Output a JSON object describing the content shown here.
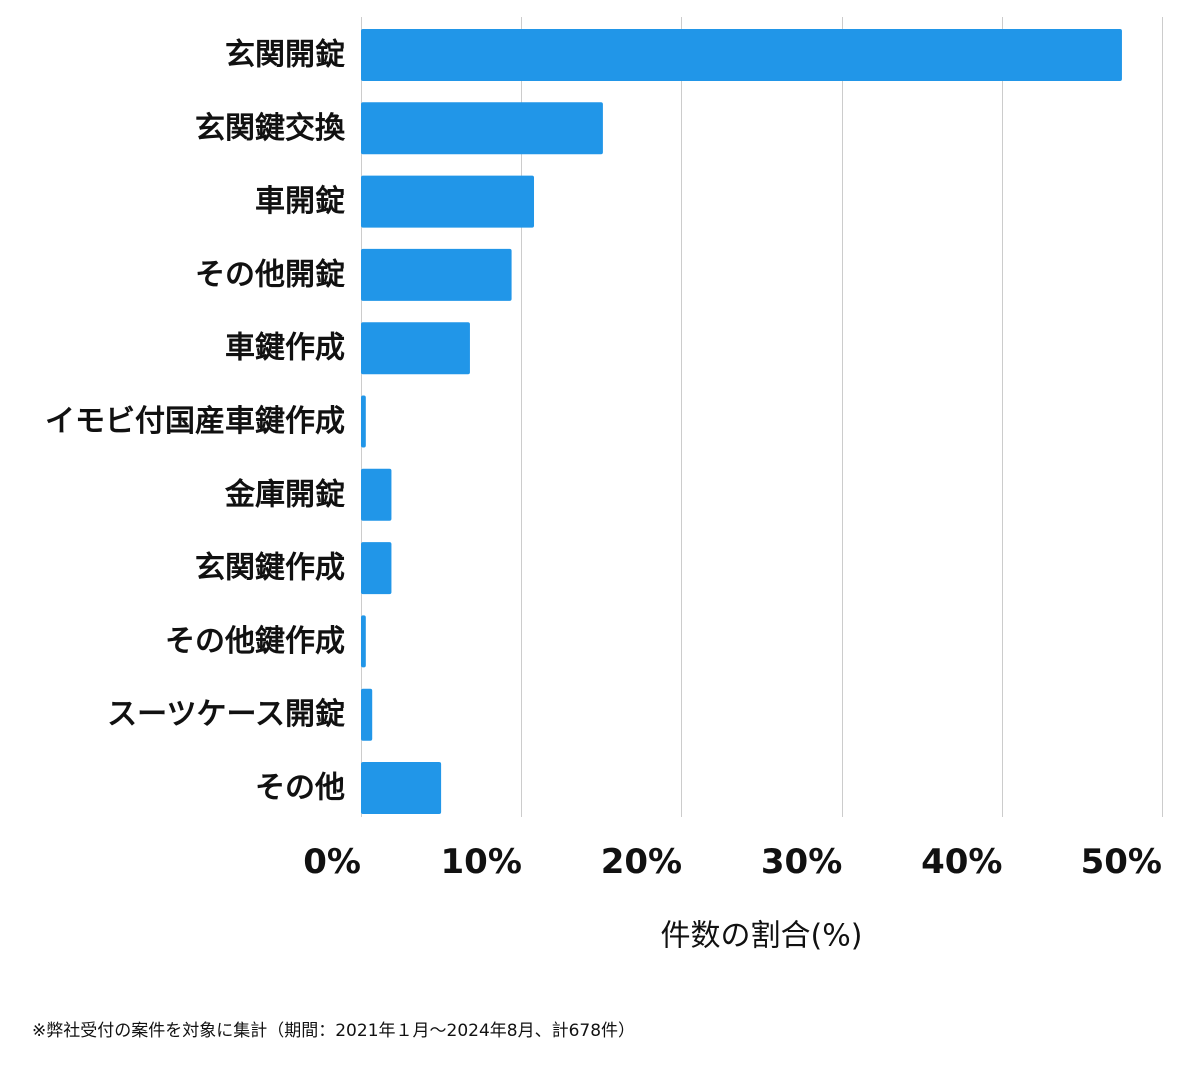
{
  "chart_data": {
    "type": "bar",
    "orientation": "horizontal",
    "categories": [
      "玄関開錠",
      "玄関鍵交換",
      "車開錠",
      "その他開錠",
      "車鍵作成",
      "イモビ付国産車鍵作成",
      "金庫開錠",
      "玄関鍵作成",
      "その他鍵作成",
      "スーツケース開錠",
      "その他"
    ],
    "values": [
      47.5,
      15.1,
      10.8,
      9.4,
      6.8,
      0.3,
      1.9,
      1.9,
      0.3,
      0.7,
      5.0
    ],
    "unit": "%",
    "xlabel": "件数の割合(%)",
    "xlim": [
      0,
      50
    ],
    "xticks": [
      0,
      10,
      20,
      30,
      40,
      50
    ],
    "xtick_labels": [
      "0%",
      "10%",
      "20%",
      "30%",
      "40%",
      "50%"
    ],
    "grid": "vertical",
    "legend": "none"
  },
  "colors": {
    "bar": "#2196e8",
    "grid": "#cccccc",
    "text": "#111111"
  },
  "footnote": "※弊社受付の案件を対象に集計（期間：2021年１月〜2024年8月、計678件）"
}
